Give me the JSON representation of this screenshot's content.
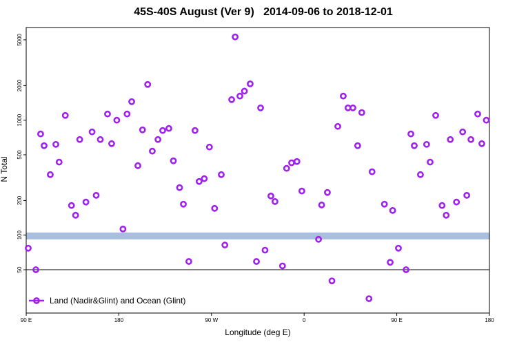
{
  "chart_data": {
    "type": "scatter",
    "title": "45S-40S August (Ver 9)   2014-09-06 to 2018-12-01",
    "x_label": "Longitude (deg E)",
    "y_label": "N Total",
    "xlim": [
      90,
      540
    ],
    "xticks": [
      {
        "value": 90,
        "label": "90 E"
      },
      {
        "value": 180,
        "label": "180"
      },
      {
        "value": 270,
        "label": "90 W"
      },
      {
        "value": 360,
        "label": "0"
      },
      {
        "value": 450,
        "label": "90 E"
      },
      {
        "value": 540,
        "label": "180"
      }
    ],
    "ylim": [
      21,
      6400
    ],
    "y_log": true,
    "yticks": [
      50,
      100,
      200,
      500,
      1000,
      2000,
      5000
    ],
    "hline": 50,
    "legend_position": "bottom-left",
    "series": [
      {
        "name": "Land (Nadir&Glint) and Ocean (Glint)",
        "color": "#a020f0",
        "x": [
          92,
          99.4,
          104,
          107.4,
          113.4,
          118.8,
          122,
          128,
          134,
          138,
          142,
          148,
          154,
          158,
          162,
          169,
          173,
          178,
          184,
          188,
          192.5,
          198.5,
          203,
          208,
          212.5,
          218,
          222.6,
          228.6,
          233,
          239,
          242.7,
          248,
          254,
          258,
          263,
          268,
          273,
          279.5,
          283,
          289.6,
          293,
          297.6,
          302,
          307.6,
          313.7,
          317.7,
          322,
          327.7,
          331.7,
          339,
          343,
          347.8,
          353,
          357.8,
          374,
          377,
          382.6,
          387,
          392.7,
          398,
          402.6,
          407.4,
          412,
          416,
          423,
          426,
          438,
          443.6,
          446,
          451.6,
          459,
          463.7,
          467,
          473,
          479,
          482.4,
          487.8,
          494,
          498,
          502,
          508,
          514,
          518,
          522,
          528.6,
          532.6,
          537
        ],
        "values": [
          77,
          50,
          759,
          600,
          336,
          616,
          432,
          1100,
          181,
          149,
          679,
          194,
          791,
          222,
          679,
          1132,
          625,
          1000,
          113,
          1132,
          1450,
          402,
          824,
          2046,
          538,
          679,
          813,
          848,
          443,
          259,
          186,
          59,
          813,
          293,
          310,
          584,
          171,
          336,
          82,
          1510,
          5300,
          1620,
          1790,
          2070,
          59,
          1280,
          74,
          219,
          196,
          54,
          381,
          426,
          437,
          242,
          92,
          183,
          235,
          40,
          883,
          1620,
          1280,
          1280,
          600,
          1165,
          28,
          356,
          186,
          58,
          164,
          77,
          50,
          759,
          600,
          336,
          616,
          432,
          1100,
          181,
          149,
          679,
          194,
          791,
          222,
          679,
          1132,
          625,
          1000
        ]
      }
    ]
  }
}
